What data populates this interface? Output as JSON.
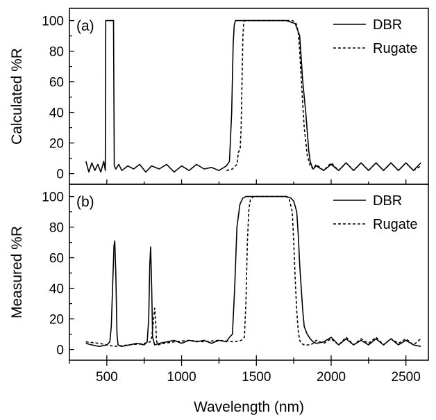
{
  "chart_data": {
    "type": "line",
    "xlabel": "Wavelength (nm)",
    "xlim": [
      250,
      2650
    ],
    "x_ticks": [
      "500",
      "1000",
      "1500",
      "2000",
      "2500"
    ],
    "x_tick_values": [
      500,
      1000,
      1500,
      2000,
      2500
    ],
    "panels": [
      {
        "id": "a",
        "panel_label": "(a)",
        "ylabel": "Calculated %R",
        "ylim": [
          -7,
          108
        ],
        "y_ticks": [
          "0",
          "20",
          "40",
          "60",
          "80",
          "100"
        ],
        "y_tick_values": [
          0,
          20,
          40,
          60,
          80,
          100
        ],
        "legend": {
          "position": "top-right",
          "entries": [
            "DBR",
            "Rugate"
          ]
        },
        "series": [
          {
            "name": "DBR",
            "style": "solid",
            "color": "#000000",
            "x": [
              360,
              380,
              400,
              420,
              440,
              460,
              480,
              490,
              493,
              498,
              540,
              545,
              550,
              560,
              580,
              600,
              640,
              680,
              720,
              760,
              800,
              850,
              900,
              950,
              1000,
              1050,
              1100,
              1150,
              1200,
              1250,
              1300,
              1320,
              1335,
              1345,
              1352,
              1360,
              1368,
              1375,
              1400,
              1500,
              1600,
              1700,
              1760,
              1790,
              1800,
              1810,
              1830,
              1850,
              1860,
              1870,
              1880,
              1900,
              1950,
              2000,
              2050,
              2100,
              2150,
              2200,
              2250,
              2300,
              2350,
              2400,
              2450,
              2500,
              2550,
              2600
            ],
            "y": [
              8,
              1,
              7,
              2,
              6,
              1,
              8,
              2,
              100,
              100,
              100,
              100,
              5,
              3,
              6,
              2,
              5,
              3,
              6,
              1,
              5,
              3,
              6,
              1,
              5,
              2,
              6,
              3,
              4,
              2,
              5,
              8,
              40,
              85,
              97,
              100,
              100,
              100,
              100,
              100,
              100,
              100,
              98,
              90,
              75,
              60,
              40,
              15,
              8,
              5,
              3,
              5,
              2,
              6,
              2,
              7,
              2,
              7,
              2,
              7,
              2,
              7,
              2,
              7,
              2,
              7
            ]
          },
          {
            "name": "Rugate",
            "style": "dashed",
            "color": "#000000",
            "x": [
              1300,
              1340,
              1370,
              1380,
              1392,
              1398,
              1404,
              1410,
              1415,
              1420,
              1430,
              1450,
              1500,
              1600,
              1700,
              1740,
              1760,
              1770,
              1780,
              1790,
              1800,
              1810,
              1820,
              1840,
              1860,
              1880,
              1900,
              1950,
              2000,
              2050,
              2100,
              2150,
              2200,
              2250,
              2300,
              2350,
              2400,
              2450,
              2500,
              2550,
              2600
            ],
            "y": [
              2,
              3,
              6,
              14,
              16,
              30,
              60,
              90,
              98,
              100,
              100,
              100,
              100,
              100,
              100,
              100,
              99,
              97,
              92,
              80,
              62,
              45,
              30,
              12,
              5,
              3,
              6,
              2,
              7,
              2,
              7,
              2,
              7,
              2,
              7,
              2,
              7,
              2,
              7,
              2,
              5
            ]
          }
        ]
      },
      {
        "id": "b",
        "panel_label": "(b)",
        "ylabel": "Measured %R",
        "ylim": [
          -7,
          108
        ],
        "y_ticks": [
          "0",
          "20",
          "40",
          "60",
          "80",
          "100"
        ],
        "y_tick_values": [
          0,
          20,
          40,
          60,
          80,
          100
        ],
        "legend": {
          "position": "top-right",
          "entries": [
            "DBR",
            "Rugate"
          ]
        },
        "series": [
          {
            "name": "DBR",
            "style": "solid",
            "color": "#000000",
            "x": [
              360,
              400,
              450,
              500,
              520,
              530,
              540,
              548,
              553,
              560,
              568,
              575,
              600,
              650,
              700,
              750,
              770,
              780,
              787,
              793,
              800,
              806,
              820,
              850,
              900,
              950,
              1000,
              1050,
              1100,
              1150,
              1200,
              1250,
              1300,
              1320,
              1340,
              1355,
              1370,
              1390,
              1410,
              1430,
              1450,
              1500,
              1600,
              1700,
              1730,
              1750,
              1770,
              1780,
              1790,
              1800,
              1810,
              1820,
              1840,
              1860,
              1880,
              1900,
              1950,
              2000,
              2050,
              2100,
              2150,
              2200,
              2250,
              2300,
              2350,
              2400,
              2450,
              2500,
              2550,
              2600
            ],
            "y": [
              4,
              3,
              2,
              3,
              5,
              15,
              45,
              68,
              71,
              50,
              10,
              3,
              2,
              3,
              4,
              3,
              5,
              20,
              55,
              67,
              40,
              8,
              3,
              4,
              5,
              6,
              4,
              6,
              5,
              6,
              4,
              6,
              5,
              8,
              10,
              40,
              80,
              95,
              99,
              100,
              100,
              100,
              100,
              100,
              99,
              97,
              90,
              75,
              55,
              40,
              25,
              15,
              10,
              7,
              5,
              4,
              5,
              8,
              3,
              7,
              3,
              6,
              3,
              7,
              3,
              7,
              3,
              6,
              3,
              2
            ]
          },
          {
            "name": "Rugate",
            "style": "dashed",
            "color": "#000000",
            "x": [
              360,
              450,
              550,
              650,
              750,
              790,
              800,
              808,
              815,
              820,
              826,
              832,
              840,
              880,
              950,
              1050,
              1150,
              1250,
              1350,
              1400,
              1420,
              1430,
              1440,
              1450,
              1460,
              1480,
              1500,
              1600,
              1700,
              1720,
              1740,
              1750,
              1760,
              1770,
              1780,
              1790,
              1800,
              1820,
              1840,
              1860,
              1880,
              1900,
              1950,
              2000,
              2050,
              2100,
              2150,
              2200,
              2250,
              2300,
              2350,
              2400,
              2450,
              2500,
              2550,
              2600
            ],
            "y": [
              5,
              4,
              2,
              3,
              4,
              5,
              8,
              15,
              22,
              27,
              20,
              6,
              3,
              4,
              5,
              6,
              5,
              6,
              5,
              6,
              8,
              30,
              70,
              92,
              98,
              100,
              100,
              100,
              100,
              98,
              90,
              70,
              45,
              25,
              12,
              6,
              4,
              3,
              3,
              3,
              4,
              6,
              4,
              7,
              3,
              8,
              3,
              7,
              4,
              8,
              3,
              7,
              4,
              7,
              3,
              7
            ]
          }
        ]
      }
    ]
  }
}
